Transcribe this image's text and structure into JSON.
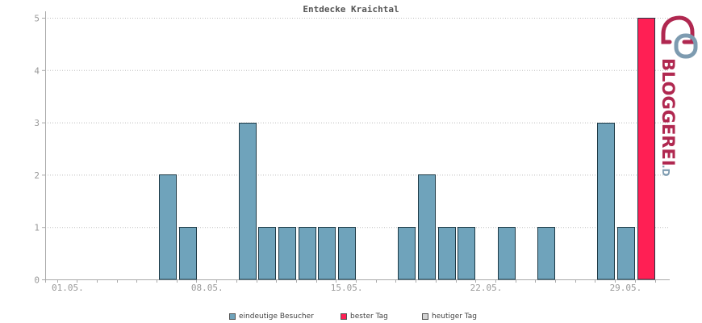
{
  "chart_data": {
    "type": "bar",
    "title": "Entdecke Kraichtal",
    "xlabel": "",
    "ylabel": "",
    "ylim": [
      0,
      5
    ],
    "yticks": [
      0,
      1,
      2,
      3,
      4,
      5
    ],
    "grid": true,
    "legend_position": "bottom",
    "x_tick_labels": [
      "01.05.",
      "08.05.",
      "15.05.",
      "22.05.",
      "29.05."
    ],
    "categories": [
      "01.05.",
      "02.05.",
      "03.05.",
      "04.05.",
      "05.05.",
      "06.05.",
      "07.05.",
      "08.05.",
      "09.05.",
      "10.05.",
      "11.05.",
      "12.05.",
      "13.05.",
      "14.05.",
      "15.05.",
      "16.05.",
      "17.05.",
      "18.05.",
      "19.05.",
      "20.05.",
      "21.05.",
      "22.05.",
      "23.05.",
      "24.05.",
      "25.05.",
      "26.05.",
      "27.05.",
      "28.05.",
      "29.05.",
      "30.05."
    ],
    "series": [
      {
        "name": "eindeutige Besucher",
        "color": "#6fa3bb",
        "values": [
          0,
          0,
          0,
          0,
          0,
          2,
          1,
          0,
          0,
          3,
          1,
          1,
          1,
          1,
          1,
          0,
          0,
          1,
          2,
          1,
          1,
          0,
          1,
          0,
          1,
          0,
          0,
          3,
          1,
          0
        ]
      },
      {
        "name": "bester Tag",
        "color": "#ff1f54",
        "values": [
          0,
          0,
          0,
          0,
          0,
          0,
          0,
          0,
          0,
          0,
          0,
          0,
          0,
          0,
          0,
          0,
          0,
          0,
          0,
          0,
          0,
          0,
          0,
          0,
          0,
          0,
          0,
          0,
          0,
          5
        ]
      }
    ],
    "legend": [
      {
        "label": "eindeutige Besucher",
        "color": "#6fa3bb"
      },
      {
        "label": "bester Tag",
        "color": "#ff1f54"
      },
      {
        "label": "heutiger Tag",
        "color": "#d3d3d3"
      }
    ]
  },
  "brand": {
    "name": "BLOGGEREI",
    "suffix": ".DE",
    "colors": {
      "primary": "#b02850",
      "secondary": "#7d9bb0"
    }
  }
}
